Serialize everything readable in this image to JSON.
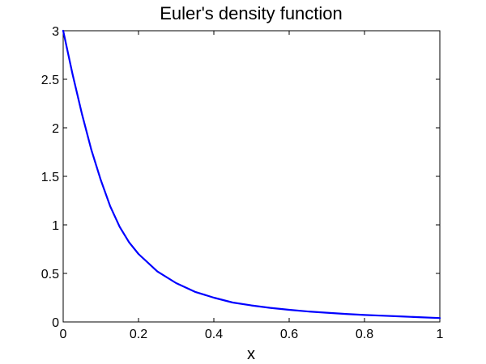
{
  "chart_data": {
    "type": "line",
    "title": "Euler's density function",
    "xlabel": "x",
    "ylabel": "",
    "xlim": [
      0,
      1
    ],
    "ylim": [
      0,
      3
    ],
    "grid": false,
    "x_ticks": [
      0,
      0.2,
      0.4,
      0.6,
      0.8,
      1
    ],
    "x_tick_labels": [
      "0",
      "0.2",
      "0.4",
      "0.6",
      "0.8",
      "1"
    ],
    "y_ticks": [
      0,
      0.5,
      1,
      1.5,
      2,
      2.5,
      3
    ],
    "y_tick_labels": [
      "0",
      "0.5",
      "1",
      "1.5",
      "2",
      "2.5",
      "3"
    ],
    "series": [
      {
        "name": "Euler's density",
        "color": "#0000ff",
        "x": [
          0,
          0.025,
          0.05,
          0.075,
          0.1,
          0.125,
          0.15,
          0.175,
          0.2,
          0.25,
          0.3,
          0.35,
          0.4,
          0.45,
          0.5,
          0.55,
          0.6,
          0.65,
          0.7,
          0.75,
          0.8,
          0.85,
          0.9,
          0.95,
          1
        ],
        "y": [
          3.0,
          2.55,
          2.14,
          1.77,
          1.46,
          1.19,
          0.98,
          0.82,
          0.7,
          0.52,
          0.4,
          0.31,
          0.25,
          0.2,
          0.17,
          0.145,
          0.125,
          0.108,
          0.095,
          0.082,
          0.072,
          0.064,
          0.056,
          0.048,
          0.04
        ]
      }
    ]
  }
}
